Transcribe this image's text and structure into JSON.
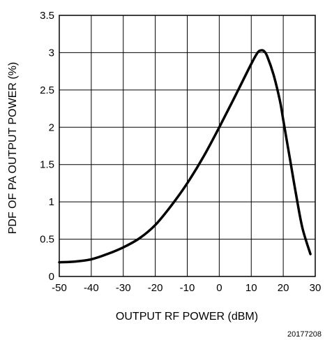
{
  "chart_data": {
    "type": "line",
    "title": "",
    "xlabel": "OUTPUT RF POWER (dBM)",
    "ylabel": "PDF OF PA OUTPUT POWER (%)",
    "xlim": [
      -50,
      30
    ],
    "ylim": [
      0,
      3.5
    ],
    "x_ticks": [
      -50,
      -40,
      -30,
      -20,
      -10,
      0,
      10,
      20,
      30
    ],
    "x_tick_labels": [
      "-50",
      "-40",
      "-30",
      "-20",
      "-10",
      "0",
      "10",
      "20",
      "30"
    ],
    "y_ticks": [
      0,
      0.5,
      1,
      1.5,
      2,
      2.5,
      3,
      3.5
    ],
    "y_tick_labels": [
      "0",
      "0.5",
      "1",
      "1.5",
      "2",
      "2.5",
      "3",
      "3.5"
    ],
    "grid": true,
    "legend": "none",
    "line_color": "#000000",
    "series": [
      {
        "x": [
          -50,
          -45,
          -40,
          -35,
          -30,
          -25,
          -20,
          -15,
          -10,
          -5,
          0,
          5,
          10,
          12,
          13,
          14,
          15,
          17,
          19,
          20,
          22,
          24,
          26,
          28.5
        ],
        "y": [
          0.19,
          0.2,
          0.23,
          0.3,
          0.39,
          0.51,
          0.69,
          0.95,
          1.25,
          1.6,
          2.0,
          2.42,
          2.85,
          3.0,
          3.03,
          3.02,
          2.95,
          2.7,
          2.35,
          2.1,
          1.6,
          1.1,
          0.65,
          0.3
        ]
      }
    ],
    "figure_id": "20177208"
  }
}
